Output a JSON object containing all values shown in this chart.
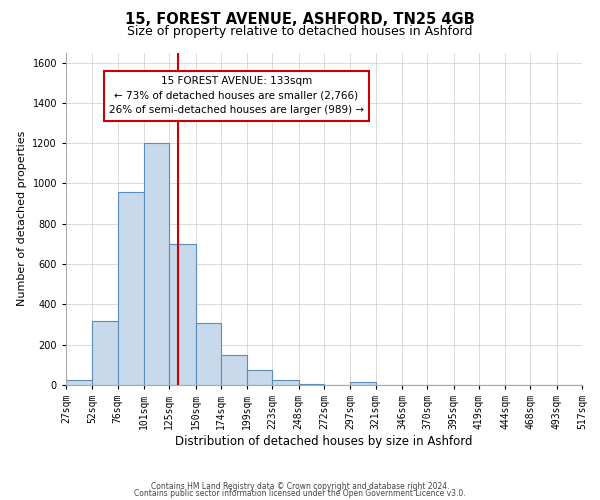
{
  "title1": "15, FOREST AVENUE, ASHFORD, TN25 4GB",
  "title2": "Size of property relative to detached houses in Ashford",
  "xlabel": "Distribution of detached houses by size in Ashford",
  "ylabel": "Number of detached properties",
  "bin_labels": [
    "27sqm",
    "52sqm",
    "76sqm",
    "101sqm",
    "125sqm",
    "150sqm",
    "174sqm",
    "199sqm",
    "223sqm",
    "248sqm",
    "272sqm",
    "297sqm",
    "321sqm",
    "346sqm",
    "370sqm",
    "395sqm",
    "419sqm",
    "444sqm",
    "468sqm",
    "493sqm",
    "517sqm"
  ],
  "bin_edges": [
    27,
    52,
    76,
    101,
    125,
    150,
    174,
    199,
    223,
    248,
    272,
    297,
    321,
    346,
    370,
    395,
    419,
    444,
    468,
    493,
    517
  ],
  "bar_heights": [
    25,
    320,
    960,
    1200,
    700,
    310,
    150,
    75,
    25,
    5,
    2,
    15,
    2,
    2,
    2,
    2,
    2,
    2,
    2,
    2,
    10
  ],
  "bar_color": "#c8d9eb",
  "bar_edge_color": "#5b8db8",
  "red_line_x": 133,
  "red_line_color": "#cc0000",
  "ylim": [
    0,
    1650
  ],
  "yticks": [
    0,
    200,
    400,
    600,
    800,
    1000,
    1200,
    1400,
    1600
  ],
  "annotation_title": "15 FOREST AVENUE: 133sqm",
  "annotation_line1": "← 73% of detached houses are smaller (2,766)",
  "annotation_line2": "26% of semi-detached houses are larger (989) →",
  "annotation_box_color": "#ffffff",
  "annotation_box_edge": "#cc0000",
  "footer1": "Contains HM Land Registry data © Crown copyright and database right 2024.",
  "footer2": "Contains public sector information licensed under the Open Government Licence v3.0.",
  "bg_color": "#ffffff",
  "grid_color": "#cccccc",
  "title1_fontsize": 10.5,
  "title2_fontsize": 9,
  "annotation_fontsize": 7.5,
  "tick_fontsize": 7,
  "ylabel_fontsize": 8,
  "xlabel_fontsize": 8.5
}
